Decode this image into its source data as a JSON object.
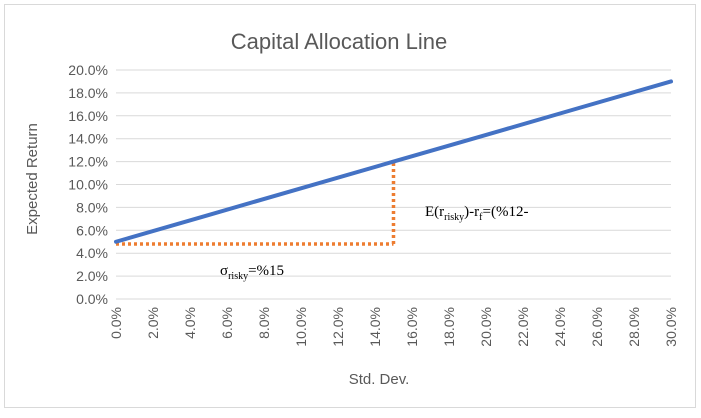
{
  "chart_data": {
    "type": "line",
    "title": "Capital Allocation Line",
    "xlabel": "Std. Dev.",
    "ylabel": "Expected Return",
    "xlim": [
      0,
      0.3
    ],
    "ylim": [
      0,
      0.2
    ],
    "x_ticks": [
      "0.0%",
      "2.0%",
      "4.0%",
      "6.0%",
      "8.0%",
      "10.0%",
      "12.0%",
      "14.0%",
      "16.0%",
      "18.0%",
      "20.0%",
      "22.0%",
      "24.0%",
      "26.0%",
      "28.0%",
      "30.0%"
    ],
    "y_ticks": [
      "0.0%",
      "2.0%",
      "4.0%",
      "6.0%",
      "8.0%",
      "10.0%",
      "12.0%",
      "14.0%",
      "16.0%",
      "18.0%",
      "20.0%"
    ],
    "grid": "horizontal",
    "series": [
      {
        "color": "#4472c4",
        "x": [
          0,
          0.05,
          0.1,
          0.15,
          0.2,
          0.25,
          0.3
        ],
        "y": [
          0.05,
          0.0733,
          0.0967,
          0.12,
          0.1433,
          0.1667,
          0.19
        ]
      }
    ],
    "guide": {
      "color": "#ed7d31",
      "style": "dotted",
      "horizontal": {
        "x": [
          0,
          0.15
        ],
        "y": 0.048
      },
      "vertical": {
        "x": 0.15,
        "y": [
          0.048,
          0.12
        ]
      }
    },
    "annotations": {
      "return_diff": {
        "prefix": "E(r",
        "sub1": "risky",
        "middle": ")-r",
        "sub2": "f",
        "suffix": "=(%12-"
      },
      "sigma": {
        "prefix": "σ",
        "sub": "risky",
        "suffix": "=%15"
      }
    }
  }
}
